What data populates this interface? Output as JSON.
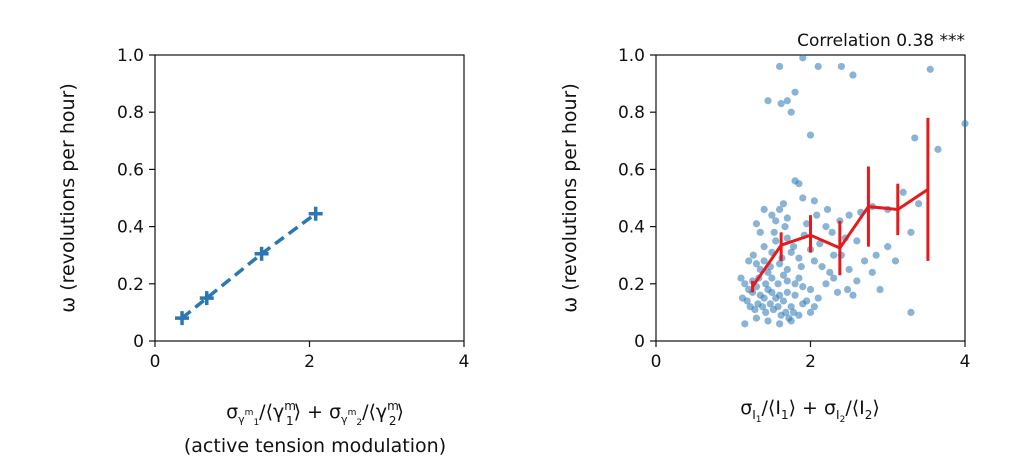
{
  "chart_data": [
    {
      "type": "line",
      "title": "",
      "xlabel": "σγm1/⟨γm1⟩ + σγm2/⟨γm2⟩",
      "xlabel_line2": "(active tension modulation)",
      "ylabel": "ω (revolutions per hour)",
      "xlim": [
        0,
        4
      ],
      "ylim": [
        0,
        1.0
      ],
      "xticks": [
        "0",
        "2",
        "4"
      ],
      "yticks": [
        "0",
        "0.2",
        "0.4",
        "0.6",
        "0.8",
        "1.0"
      ],
      "grid": false,
      "color": "#2a77b4",
      "series": [
        {
          "x": [
            0.35,
            0.67,
            1.38,
            2.08
          ],
          "y": [
            0.08,
            0.15,
            0.305,
            0.445
          ]
        }
      ]
    },
    {
      "type": "scatter",
      "title": "",
      "annotation": "Correlation 0.38 ***",
      "xlabel": "σI1/⟨I1⟩ + σI2/⟨I2⟩",
      "ylabel": "ω (revolutions per hour)",
      "xlim": [
        0,
        4
      ],
      "ylim": [
        0,
        1.0
      ],
      "xticks": [
        "0",
        "2",
        "4"
      ],
      "yticks": [
        "0",
        "0.2",
        "0.4",
        "0.6",
        "0.8",
        "1.0"
      ],
      "grid": false,
      "scatter_color": "#2a77b4",
      "binned_color": "#e41a1c",
      "points": [
        [
          1.9,
          0.99
        ],
        [
          2.1,
          0.96
        ],
        [
          2.4,
          0.96
        ],
        [
          2.55,
          0.93
        ],
        [
          1.6,
          0.96
        ],
        [
          3.55,
          0.95
        ],
        [
          1.45,
          0.84
        ],
        [
          1.62,
          0.83
        ],
        [
          1.7,
          0.84
        ],
        [
          1.8,
          0.87
        ],
        [
          1.75,
          0.8
        ],
        [
          2.0,
          0.72
        ],
        [
          3.35,
          0.71
        ],
        [
          3.65,
          0.67
        ],
        [
          4.0,
          0.76
        ],
        [
          1.8,
          0.56
        ],
        [
          1.85,
          0.55
        ],
        [
          1.9,
          0.5
        ],
        [
          2.05,
          0.49
        ],
        [
          1.65,
          0.48
        ],
        [
          1.6,
          0.46
        ],
        [
          2.5,
          0.44
        ],
        [
          2.65,
          0.45
        ],
        [
          2.8,
          0.47
        ],
        [
          3.0,
          0.46
        ],
        [
          3.4,
          0.48
        ],
        [
          3.2,
          0.52
        ],
        [
          3.3,
          0.38
        ],
        [
          3.0,
          0.33
        ],
        [
          3.1,
          0.28
        ],
        [
          1.4,
          0.46
        ],
        [
          1.5,
          0.44
        ],
        [
          1.55,
          0.42
        ],
        [
          1.7,
          0.43
        ],
        [
          1.95,
          0.41
        ],
        [
          2.2,
          0.4
        ],
        [
          2.45,
          0.36
        ],
        [
          2.6,
          0.35
        ],
        [
          2.3,
          0.3
        ],
        [
          2.25,
          0.24
        ],
        [
          2.5,
          0.25
        ],
        [
          2.6,
          0.21
        ],
        [
          2.8,
          0.24
        ],
        [
          2.9,
          0.18
        ],
        [
          2.55,
          0.16
        ],
        [
          1.3,
          0.41
        ],
        [
          1.35,
          0.38
        ],
        [
          1.4,
          0.33
        ],
        [
          1.5,
          0.31
        ],
        [
          1.55,
          0.35
        ],
        [
          1.7,
          0.36
        ],
        [
          1.75,
          0.31
        ],
        [
          1.85,
          0.29
        ],
        [
          2.0,
          0.32
        ],
        [
          2.05,
          0.28
        ],
        [
          2.15,
          0.26
        ],
        [
          2.3,
          0.22
        ],
        [
          2.35,
          0.17
        ],
        [
          2.1,
          0.15
        ],
        [
          2.2,
          0.2
        ],
        [
          1.2,
          0.28
        ],
        [
          1.3,
          0.27
        ],
        [
          1.35,
          0.25
        ],
        [
          1.45,
          0.24
        ],
        [
          1.5,
          0.22
        ],
        [
          1.6,
          0.27
        ],
        [
          1.65,
          0.23
        ],
        [
          1.7,
          0.21
        ],
        [
          1.8,
          0.2
        ],
        [
          1.85,
          0.22
        ],
        [
          1.9,
          0.19
        ],
        [
          2.0,
          0.18
        ],
        [
          1.95,
          0.14
        ],
        [
          2.05,
          0.12
        ],
        [
          1.75,
          0.12
        ],
        [
          1.1,
          0.22
        ],
        [
          1.15,
          0.2
        ],
        [
          1.2,
          0.18
        ],
        [
          1.25,
          0.17
        ],
        [
          1.3,
          0.19
        ],
        [
          1.35,
          0.16
        ],
        [
          1.4,
          0.15
        ],
        [
          1.45,
          0.18
        ],
        [
          1.5,
          0.17
        ],
        [
          1.55,
          0.15
        ],
        [
          1.6,
          0.16
        ],
        [
          1.65,
          0.14
        ],
        [
          1.7,
          0.17
        ],
        [
          1.8,
          0.16
        ],
        [
          1.9,
          0.13
        ],
        [
          1.12,
          0.15
        ],
        [
          1.18,
          0.14
        ],
        [
          1.22,
          0.12
        ],
        [
          1.28,
          0.11
        ],
        [
          1.32,
          0.13
        ],
        [
          1.38,
          0.12
        ],
        [
          1.42,
          0.1
        ],
        [
          1.48,
          0.13
        ],
        [
          1.52,
          0.11
        ],
        [
          1.58,
          0.12
        ],
        [
          1.62,
          0.09
        ],
        [
          1.68,
          0.1
        ],
        [
          1.72,
          0.08
        ],
        [
          1.78,
          0.1
        ],
        [
          1.85,
          0.09
        ],
        [
          1.15,
          0.06
        ],
        [
          1.3,
          0.08
        ],
        [
          1.45,
          0.07
        ],
        [
          1.6,
          0.06
        ],
        [
          1.75,
          0.07
        ],
        [
          2.0,
          0.1
        ],
        [
          3.3,
          0.1
        ],
        [
          1.25,
          0.21
        ],
        [
          1.42,
          0.2
        ],
        [
          1.58,
          0.2
        ],
        [
          1.7,
          0.25
        ],
        [
          1.88,
          0.26
        ],
        [
          2.12,
          0.34
        ],
        [
          2.28,
          0.38
        ],
        [
          2.4,
          0.3
        ],
        [
          1.33,
          0.22
        ],
        [
          1.48,
          0.26
        ],
        [
          1.63,
          0.29
        ],
        [
          1.78,
          0.33
        ],
        [
          1.92,
          0.37
        ],
        [
          2.08,
          0.44
        ],
        [
          2.22,
          0.46
        ],
        [
          2.38,
          0.42
        ],
        [
          2.48,
          0.18
        ],
        [
          2.7,
          0.28
        ],
        [
          2.85,
          0.3
        ],
        [
          1.26,
          0.3
        ],
        [
          1.4,
          0.28
        ],
        [
          1.53,
          0.38
        ],
        [
          1.67,
          0.4
        ]
      ],
      "binned": {
        "x": [
          1.25,
          1.62,
          2.0,
          2.38,
          2.75,
          3.13,
          3.52
        ],
        "y": [
          0.19,
          0.335,
          0.37,
          0.325,
          0.47,
          0.46,
          0.53
        ],
        "err_low": [
          0.17,
          0.28,
          0.31,
          0.23,
          0.33,
          0.37,
          0.28
        ],
        "err_high": [
          0.21,
          0.38,
          0.44,
          0.42,
          0.61,
          0.55,
          0.78
        ]
      }
    }
  ]
}
